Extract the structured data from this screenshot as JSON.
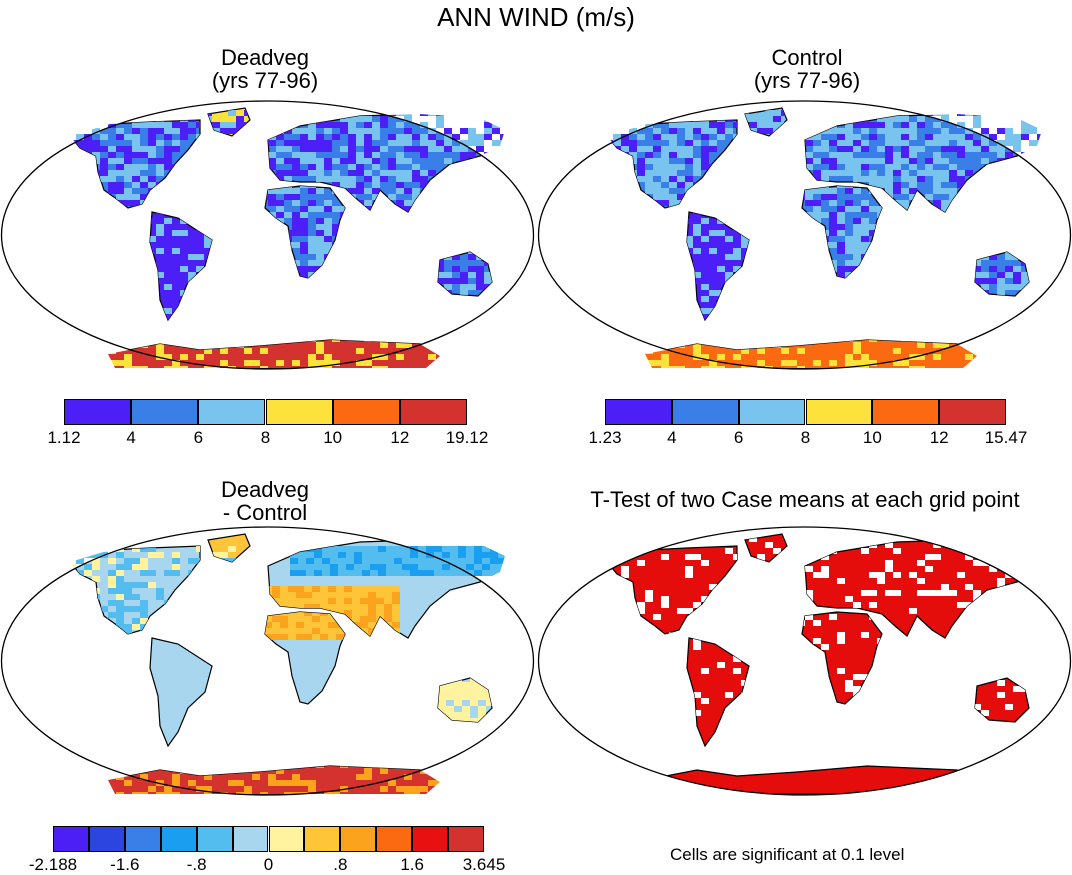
{
  "title": "ANN WIND (m/s)",
  "panels": {
    "deadveg": {
      "title_line1": "Deadveg",
      "title_line2": "(yrs 77-96)"
    },
    "control": {
      "title_line1": "Control",
      "title_line2": "(yrs 77-96)"
    },
    "diff": {
      "title_line1": "Deadveg",
      "title_line2": "- Control"
    },
    "ttest": {
      "title": "T-Test of two Case means at each grid point",
      "note": "Cells are significant at 0.1 level"
    }
  },
  "chart_data": [
    {
      "type": "heatmap",
      "name": "deadveg",
      "title": "Deadveg (yrs 77-96)",
      "colorbar_labels": [
        "1.12",
        "4",
        "6",
        "8",
        "10",
        "12",
        "19.12"
      ],
      "colorbar_colors": [
        "#4b1ff5",
        "#3a7ee8",
        "#79c3ef",
        "#fde23c",
        "#fb6a10",
        "#d3322e"
      ]
    },
    {
      "type": "heatmap",
      "name": "control",
      "title": "Control (yrs 77-96)",
      "colorbar_labels": [
        "1.23",
        "4",
        "6",
        "8",
        "10",
        "12",
        "15.47"
      ],
      "colorbar_colors": [
        "#4b1ff5",
        "#3a7ee8",
        "#79c3ef",
        "#fde23c",
        "#fb6a10",
        "#d3322e"
      ]
    },
    {
      "type": "heatmap",
      "name": "difference",
      "title": "Deadveg - Control",
      "colorbar_labels": [
        "-2.188",
        "-1.6",
        "-.8",
        "0",
        ".8",
        "1.6",
        "3.645"
      ],
      "colorbar_colors": [
        "#4b1ff5",
        "#2d45e0",
        "#3a7ee8",
        "#1a9ff0",
        "#54bdf0",
        "#a8d6ef",
        "#fff3a0",
        "#fec538",
        "#fca31e",
        "#fb6a10",
        "#e81010",
        "#d3322e"
      ]
    },
    {
      "type": "heatmap",
      "name": "t-test",
      "title": "T-Test of two Case means at each grid point",
      "significance_level": 0.1,
      "colorbar_colors": [
        "#e50c0c"
      ]
    }
  ]
}
